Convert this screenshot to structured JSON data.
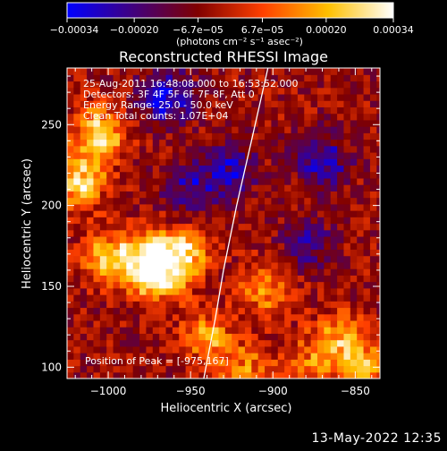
{
  "chart_data": {
    "type": "heatmap",
    "title": "Reconstructed RHESSI Image",
    "xlabel": "Heliocentric X (arcsec)",
    "ylabel": "Heliocentric Y (arcsec)",
    "xlim": [
      -1025,
      -835
    ],
    "ylim": [
      93,
      285
    ],
    "xticks": [
      -1000,
      -950,
      -900,
      -850
    ],
    "xtick_labels": [
      "−1000",
      "−950",
      "−900",
      "−850"
    ],
    "yticks": [
      100,
      150,
      200,
      250
    ],
    "ytick_labels": [
      "100",
      "150",
      "200",
      "250"
    ],
    "colorbar": {
      "min": -0.00034,
      "max": 0.00034,
      "ticks": [
        -0.00034,
        -0.0002,
        -6.7e-05,
        6.7e-05,
        0.0002,
        0.00034
      ],
      "tick_labels": [
        "−0.00034",
        "−0.00020",
        "−6.7e−05",
        "6.7e−05",
        "0.00020",
        "0.00034"
      ],
      "unit_label": "(photons cm⁻² s⁻¹ asec⁻²)",
      "colormap": [
        "#0000ff",
        "#400080",
        "#800000",
        "#ff4000",
        "#ffc000",
        "#ffffff"
      ]
    },
    "annotations": [
      "25-Aug-2011 16:48:08.000 to 16:53:52.000",
      "Detectors: 3F 4F 5F 6F 7F 8F, Att 0",
      "Energy Range: 25.0 - 50.0 keV",
      "Clean    Total counts: 1.07E+04"
    ],
    "peak_label": "Position of Peak = [-975,167]",
    "limb_curve": [
      [
        -942,
        93
      ],
      [
        -935,
        130
      ],
      [
        -930,
        160
      ],
      [
        -922,
        200
      ],
      [
        -913,
        240
      ],
      [
        -903,
        285
      ]
    ],
    "bright_regions": [
      {
        "x": -1018,
        "y": 215,
        "peak": 0.00034
      },
      {
        "x": -1005,
        "y": 245,
        "peak": 0.0003
      },
      {
        "x": -1000,
        "y": 168,
        "peak": 0.00028
      },
      {
        "x": -975,
        "y": 167,
        "peak": 0.00034
      },
      {
        "x": -955,
        "y": 170,
        "peak": 0.0003
      },
      {
        "x": -970,
        "y": 155,
        "peak": 0.00026
      },
      {
        "x": -940,
        "y": 120,
        "peak": 0.00022
      },
      {
        "x": -905,
        "y": 148,
        "peak": 0.00018
      },
      {
        "x": -860,
        "y": 118,
        "peak": 0.00024
      },
      {
        "x": -845,
        "y": 100,
        "peak": 0.00026
      },
      {
        "x": -880,
        "y": 100,
        "peak": 0.00016
      },
      {
        "x": -918,
        "y": 100,
        "peak": 0.00018
      }
    ],
    "dark_regions": [
      {
        "x": -965,
        "y": 268,
        "peak": -0.00028
      },
      {
        "x": -925,
        "y": 222,
        "peak": -0.0002
      },
      {
        "x": -870,
        "y": 228,
        "peak": -0.00022
      },
      {
        "x": -950,
        "y": 210,
        "peak": -0.00018
      },
      {
        "x": -880,
        "y": 178,
        "peak": -0.00016
      }
    ]
  },
  "timestamp": "13-May-2022 12:35"
}
